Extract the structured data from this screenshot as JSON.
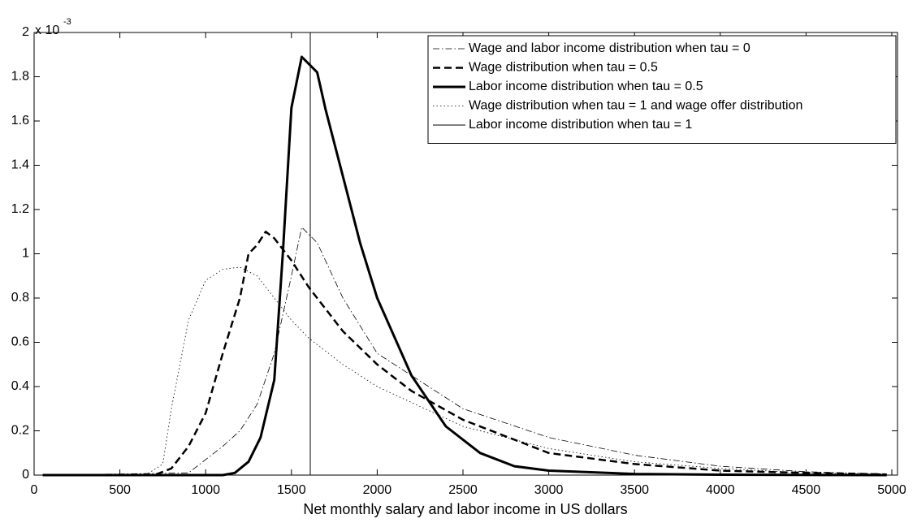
{
  "chart_data": {
    "type": "line",
    "x_label": "Net monthly  salary  and labor income in US dollars",
    "y_multiplier": "x 10",
    "y_exponent": "-3",
    "xlim": [
      0,
      5000
    ],
    "ylim": [
      0,
      2
    ],
    "xticks": [
      0,
      500,
      1000,
      1500,
      2000,
      2500,
      3000,
      3500,
      4000,
      4500,
      5000
    ],
    "yticks": [
      0,
      0.2,
      0.4,
      0.6,
      0.8,
      1,
      1.2,
      1.4,
      1.6,
      1.8,
      2
    ],
    "legend": "top-right",
    "series": [
      {
        "name": "Wage and labor income distribution when tau = 0",
        "color": "#000000",
        "style": "dashdot",
        "width": 0.8,
        "x": [
          50,
          900,
          1000,
          1100,
          1200,
          1300,
          1400,
          1500,
          1560,
          1650,
          1800,
          2000,
          2500,
          3000,
          3500,
          4000,
          4500,
          4970
        ],
        "values": [
          0,
          0.01,
          0.07,
          0.13,
          0.2,
          0.32,
          0.55,
          0.9,
          1.12,
          1.05,
          0.8,
          0.55,
          0.3,
          0.17,
          0.09,
          0.04,
          0.015,
          0.005
        ]
      },
      {
        "name": "Wage distribution when tau = 0.5",
        "color": "#000000",
        "style": "dash",
        "width": 2.5,
        "x": [
          50,
          700,
          800,
          900,
          1000,
          1100,
          1200,
          1250,
          1300,
          1350,
          1400,
          1500,
          1600,
          1800,
          2000,
          2200,
          2500,
          3000,
          3500,
          4000,
          4500,
          4970
        ],
        "values": [
          0,
          0,
          0.03,
          0.13,
          0.28,
          0.55,
          0.8,
          1.0,
          1.04,
          1.1,
          1.07,
          0.97,
          0.85,
          0.65,
          0.5,
          0.38,
          0.25,
          0.1,
          0.05,
          0.02,
          0.01,
          0.003
        ]
      },
      {
        "name": "Labor income distribution when tau = 0.5",
        "color": "#000000",
        "style": "solid",
        "width": 3,
        "x": [
          50,
          1100,
          1170,
          1250,
          1320,
          1400,
          1450,
          1500,
          1560,
          1650,
          1700,
          1800,
          1900,
          2000,
          2200,
          2400,
          2600,
          2800,
          3000,
          3500,
          4000,
          4970
        ],
        "values": [
          0,
          0,
          0.01,
          0.06,
          0.17,
          0.43,
          1.0,
          1.66,
          1.89,
          1.82,
          1.65,
          1.35,
          1.05,
          0.8,
          0.45,
          0.22,
          0.1,
          0.04,
          0.02,
          0.005,
          0.002,
          0
        ]
      },
      {
        "name": "Wage distribution when tau = 1 and wage offer distribution",
        "color": "#000000",
        "style": "dotted",
        "width": 0.8,
        "x": [
          50,
          650,
          750,
          800,
          900,
          1000,
          1100,
          1200,
          1300,
          1400,
          1500,
          1600,
          1800,
          2000,
          2500,
          3000,
          3500,
          4000,
          4500,
          4970
        ],
        "values": [
          0,
          0,
          0.05,
          0.3,
          0.7,
          0.88,
          0.93,
          0.94,
          0.9,
          0.8,
          0.7,
          0.62,
          0.5,
          0.4,
          0.22,
          0.12,
          0.06,
          0.03,
          0.01,
          0.004
        ]
      },
      {
        "name": "Labor income distribution when tau = 1",
        "color": "#000000",
        "style": "solid",
        "width": 1,
        "x": [
          1610,
          1610
        ],
        "values": [
          0,
          2
        ]
      }
    ]
  }
}
